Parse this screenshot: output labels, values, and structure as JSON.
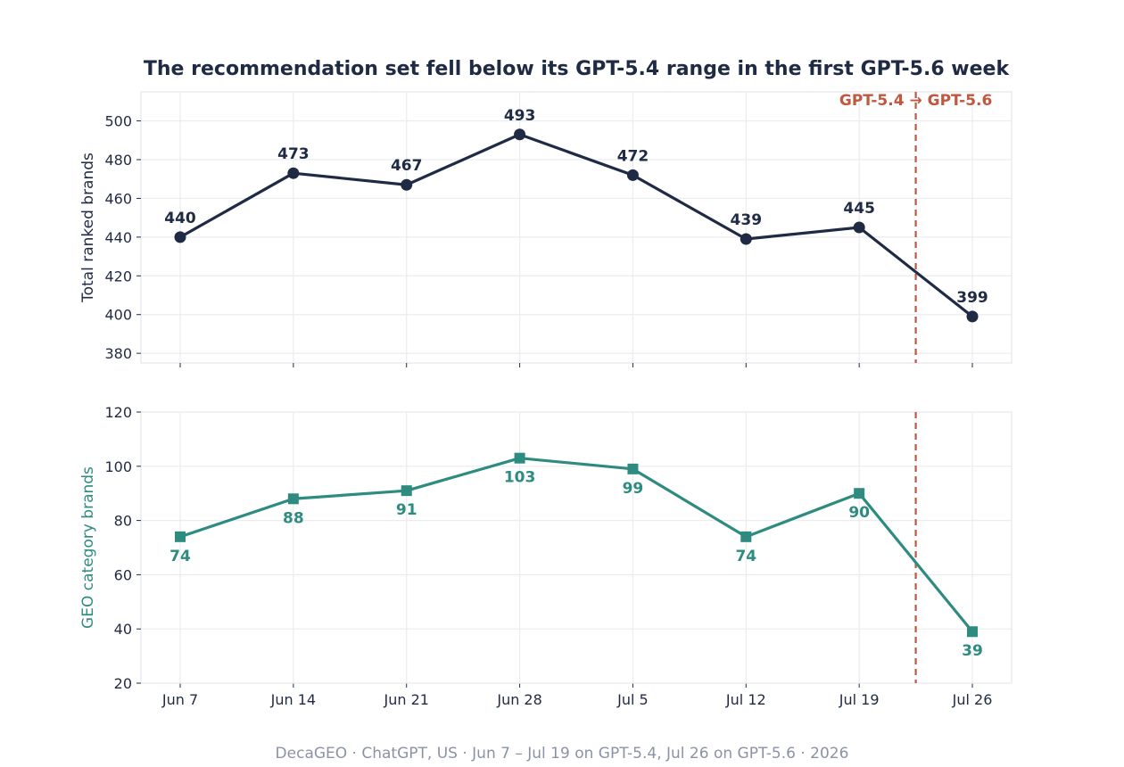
{
  "chart_data": {
    "type": "line",
    "title": "The recommendation set fell below its GPT-5.4 range in the first GPT-5.6 week",
    "x": [
      "Jun 7",
      "Jun 14",
      "Jun 21",
      "Jun 28",
      "Jul 5",
      "Jul 12",
      "Jul 19",
      "Jul 26"
    ],
    "panels": [
      {
        "ylabel": "Total ranked brands",
        "ylim": [
          375,
          515
        ],
        "yticks": [
          380,
          400,
          420,
          440,
          460,
          480,
          500
        ],
        "color": "#1f2a44",
        "marker": "circle",
        "label_position": "above",
        "values": [
          440,
          473,
          467,
          493,
          472,
          439,
          445,
          399
        ]
      },
      {
        "ylabel": "GEO category brands",
        "ylim": [
          20,
          120
        ],
        "yticks": [
          20,
          40,
          60,
          80,
          100,
          120
        ],
        "color": "#2e8b80",
        "marker": "square",
        "label_position": "below",
        "values": [
          74,
          88,
          91,
          103,
          99,
          74,
          90,
          39
        ]
      }
    ],
    "grid": true,
    "switch_marker": {
      "label": "GPT-5.4 → GPT-5.6",
      "between": [
        "Jul 19",
        "Jul 26"
      ],
      "color": "#c0573f"
    }
  },
  "footer": "DecaGEO · ChatGPT, US · Jun 7 – Jul 19 on GPT-5.4, Jul 26 on GPT-5.6 · 2026"
}
